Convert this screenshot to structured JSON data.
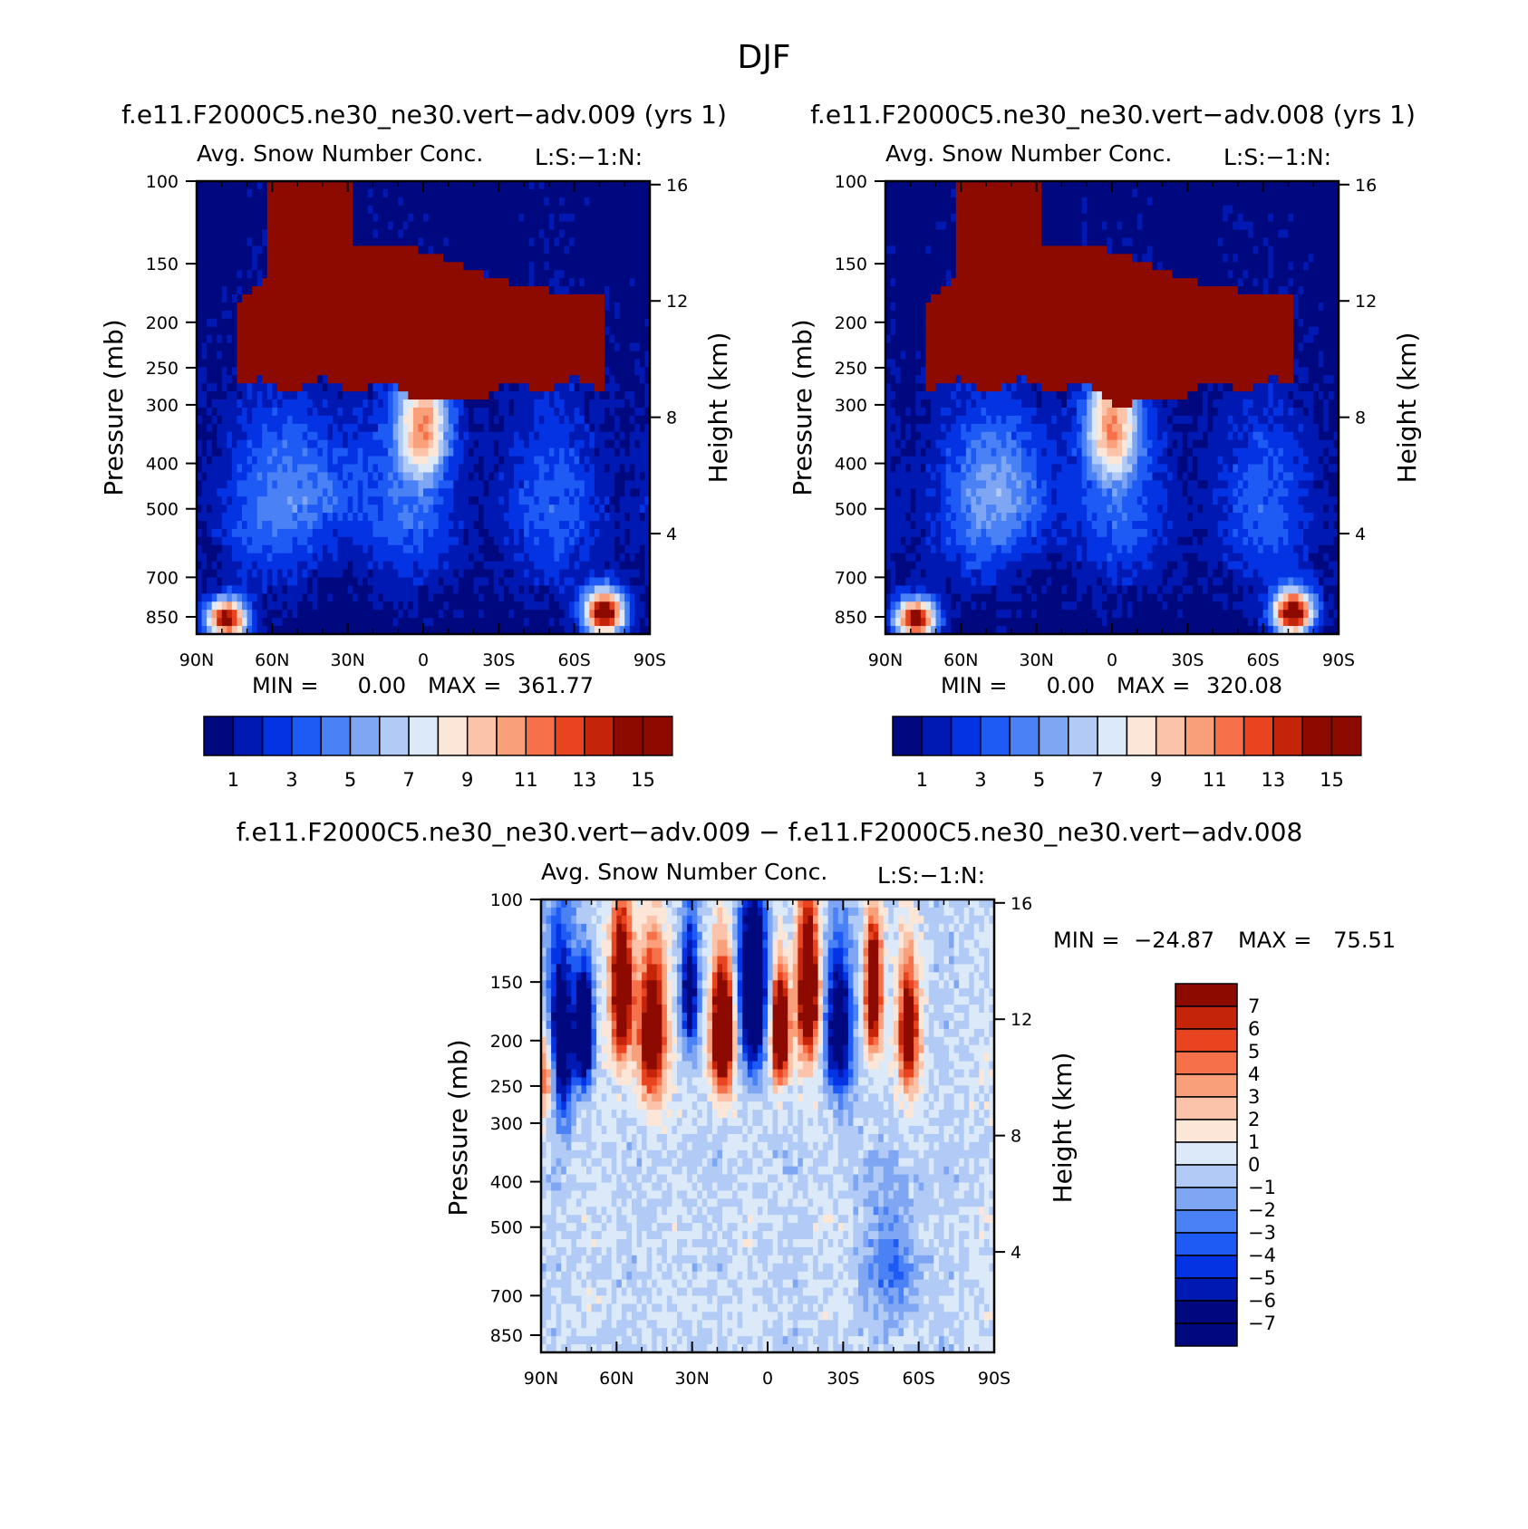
{
  "figure": {
    "title": "DJF"
  },
  "chart_data": [
    {
      "type": "heatmap",
      "title": "f.e11.F2000C5.ne30_ne30.vert−adv.009 (yrs 1)",
      "subtitle": "Avg. Snow Number Conc.",
      "right_string": "L:S:−1:N:",
      "ylabel": "Pressure (mb)",
      "ylabel_right": "Height (km)",
      "x_ticks": [
        "90N",
        "60N",
        "30N",
        "0",
        "30S",
        "60S",
        "90S"
      ],
      "y_ticks": [
        "100",
        "150",
        "200",
        "250",
        "300",
        "400",
        "500",
        "700",
        "850"
      ],
      "y_right_ticks": [
        "16",
        "12",
        "8",
        "4"
      ],
      "stats": {
        "min_label": "MIN =",
        "min": "0.00",
        "max_label": "MAX =",
        "max": "361.77"
      },
      "colorbar_labels": [
        "1",
        "3",
        "5",
        "7",
        "9",
        "11",
        "13",
        "15"
      ],
      "field": "mean"
    },
    {
      "type": "heatmap",
      "title": "f.e11.F2000C5.ne30_ne30.vert−adv.008 (yrs 1)",
      "subtitle": "Avg. Snow Number Conc.",
      "right_string": "L:S:−1:N:",
      "ylabel": "Pressure (mb)",
      "ylabel_right": "Height (km)",
      "x_ticks": [
        "90N",
        "60N",
        "30N",
        "0",
        "30S",
        "60S",
        "90S"
      ],
      "y_ticks": [
        "100",
        "150",
        "200",
        "250",
        "300",
        "400",
        "500",
        "700",
        "850"
      ],
      "y_right_ticks": [
        "16",
        "12",
        "8",
        "4"
      ],
      "stats": {
        "min_label": "MIN =",
        "min": "0.00",
        "max_label": "MAX =",
        "max": "320.08"
      },
      "colorbar_labels": [
        "1",
        "3",
        "5",
        "7",
        "9",
        "11",
        "13",
        "15"
      ],
      "field": "mean"
    },
    {
      "type": "heatmap",
      "title": "f.e11.F2000C5.ne30_ne30.vert−adv.009 − f.e11.F2000C5.ne30_ne30.vert−adv.008",
      "subtitle": "Avg. Snow Number Conc.",
      "right_string": "L:S:−1:N:",
      "ylabel": "Pressure (mb)",
      "ylabel_right": "Height (km)",
      "x_ticks": [
        "90N",
        "60N",
        "30N",
        "0",
        "30S",
        "60S",
        "90S"
      ],
      "y_ticks": [
        "100",
        "150",
        "200",
        "250",
        "300",
        "400",
        "500",
        "700",
        "850"
      ],
      "y_right_ticks": [
        "16",
        "12",
        "8",
        "4"
      ],
      "stats": {
        "min_label": "MIN =",
        "min": "−24.87",
        "max_label": "MAX =",
        "max": "75.51"
      },
      "colorbar_labels": [
        "7",
        "6",
        "5",
        "4",
        "3",
        "2",
        "1",
        "0",
        "−1",
        "−2",
        "−3",
        "−4",
        "−5",
        "−6",
        "−7"
      ],
      "field": "diff"
    }
  ],
  "colors": {
    "abs_scale": [
      "#00087f",
      "#0019b2",
      "#0433e4",
      "#1e5bf5",
      "#4a82f5",
      "#7ea6f3",
      "#b1cbf6",
      "#dbe9f8",
      "#fbe6d8",
      "#fbc4aa",
      "#f99f7a",
      "#f6704a",
      "#e94420",
      "#c42508",
      "#8c0a00"
    ],
    "diff_scale": [
      "#00087f",
      "#0019b2",
      "#0433e4",
      "#1e5bf5",
      "#4a82f5",
      "#7ea6f3",
      "#b1cbf6",
      "#dbe9f8",
      "#fbe6d8",
      "#fbc4aa",
      "#f99f7a",
      "#f6704a",
      "#e94420",
      "#c42508",
      "#8c0a00"
    ]
  }
}
